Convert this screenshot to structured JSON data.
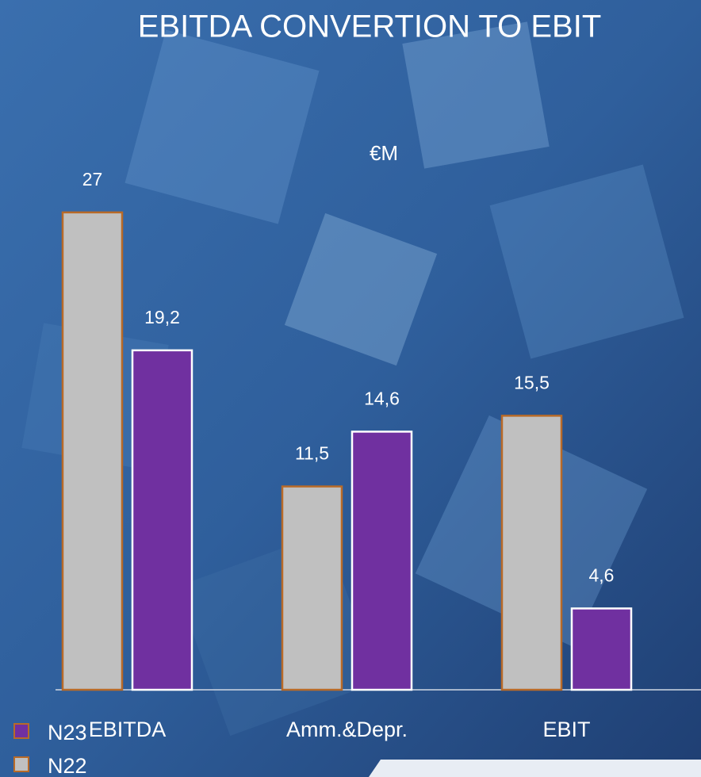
{
  "chart_data": {
    "type": "bar",
    "title": "EBITDA CONVERTION TO EBIT",
    "subtitle": "€M",
    "categories": [
      "EBITDA",
      "Amm.&Depr.",
      "EBIT"
    ],
    "series": [
      {
        "name": "N22",
        "color": "#c0c0c0",
        "border": "#b86a28",
        "values": [
          27,
          11.5,
          15.5
        ],
        "value_labels": [
          "27",
          "11,5",
          "15,5"
        ]
      },
      {
        "name": "N23",
        "color": "#7030a0",
        "border": "#ffffff",
        "values": [
          19.2,
          14.6,
          4.6
        ],
        "value_labels": [
          "19,2",
          "14,6",
          "4,6"
        ]
      }
    ],
    "ylim": [
      0,
      30
    ]
  }
}
